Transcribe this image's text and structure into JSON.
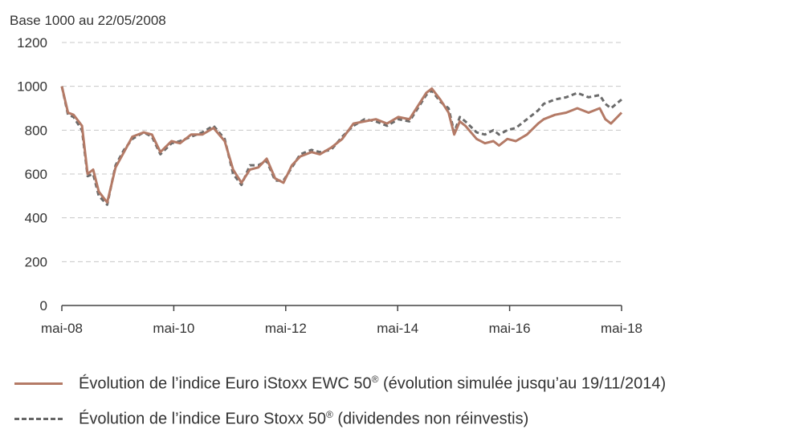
{
  "chart_data": {
    "type": "line",
    "title": "Base 1000 au 22/05/2008",
    "xlabel": "",
    "ylabel": "",
    "ylim": [
      0,
      1200
    ],
    "y_ticks": [
      0,
      200,
      400,
      600,
      800,
      1000,
      1200
    ],
    "x_ticks": [
      "mai-08",
      "mai-10",
      "mai-12",
      "mai-14",
      "mai-16",
      "mai-18"
    ],
    "x_range": [
      2008.39,
      2018.39
    ],
    "grid": "horizontal",
    "legend_position": "bottom",
    "series": [
      {
        "name": "Évolution de l’indice Euro iStoxx EWC 50",
        "legend_suffix": "(évolution simulée jusqu’au 19/11/2014)",
        "color": "#b47a66",
        "style": "solid",
        "x": [
          2008.39,
          2008.5,
          2008.6,
          2008.75,
          2008.85,
          2008.95,
          2009.05,
          2009.2,
          2009.35,
          2009.5,
          2009.65,
          2009.85,
          2010.0,
          2010.15,
          2010.35,
          2010.5,
          2010.7,
          2010.9,
          2011.1,
          2011.3,
          2011.45,
          2011.6,
          2011.75,
          2011.9,
          2012.05,
          2012.2,
          2012.35,
          2012.5,
          2012.65,
          2012.85,
          2013.0,
          2013.2,
          2013.4,
          2013.6,
          2013.8,
          2014.0,
          2014.2,
          2014.4,
          2014.6,
          2014.8,
          2014.9,
          2015.0,
          2015.15,
          2015.3,
          2015.4,
          2015.5,
          2015.6,
          2015.8,
          2015.95,
          2016.1,
          2016.2,
          2016.35,
          2016.5,
          2016.7,
          2016.9,
          2017.0,
          2017.2,
          2017.4,
          2017.6,
          2017.8,
          2018.0,
          2018.1,
          2018.2,
          2018.39
        ],
        "values": [
          1000,
          880,
          870,
          820,
          600,
          620,
          520,
          470,
          630,
          700,
          770,
          790,
          780,
          700,
          750,
          740,
          780,
          780,
          810,
          750,
          620,
          560,
          620,
          630,
          670,
          580,
          560,
          640,
          680,
          700,
          690,
          720,
          760,
          830,
          840,
          850,
          830,
          860,
          850,
          930,
          970,
          990,
          940,
          880,
          780,
          840,
          820,
          760,
          740,
          750,
          730,
          760,
          750,
          780,
          830,
          850,
          870,
          880,
          900,
          880,
          900,
          850,
          830,
          880
        ]
      },
      {
        "name": "Évolution de l’indice Euro Stoxx 50",
        "legend_suffix": "(dividendes non réinvestis)",
        "color": "#6b6b6b",
        "style": "dashed",
        "x": [
          2008.39,
          2008.5,
          2008.6,
          2008.75,
          2008.85,
          2008.95,
          2009.05,
          2009.2,
          2009.35,
          2009.5,
          2009.65,
          2009.85,
          2010.0,
          2010.15,
          2010.35,
          2010.5,
          2010.7,
          2010.9,
          2011.1,
          2011.3,
          2011.45,
          2011.6,
          2011.75,
          2011.9,
          2012.05,
          2012.2,
          2012.35,
          2012.5,
          2012.65,
          2012.85,
          2013.0,
          2013.2,
          2013.4,
          2013.6,
          2013.8,
          2014.0,
          2014.2,
          2014.4,
          2014.6,
          2014.8,
          2014.9,
          2015.0,
          2015.15,
          2015.3,
          2015.4,
          2015.5,
          2015.6,
          2015.8,
          2015.95,
          2016.1,
          2016.2,
          2016.35,
          2016.5,
          2016.7,
          2016.9,
          2017.0,
          2017.2,
          2017.4,
          2017.6,
          2017.8,
          2018.0,
          2018.1,
          2018.2,
          2018.39
        ],
        "values": [
          1000,
          870,
          860,
          800,
          590,
          600,
          500,
          460,
          640,
          710,
          760,
          790,
          770,
          690,
          740,
          750,
          770,
          790,
          820,
          760,
          600,
          550,
          640,
          640,
          660,
          570,
          570,
          630,
          690,
          710,
          700,
          710,
          770,
          820,
          850,
          840,
          820,
          850,
          840,
          920,
          960,
          980,
          930,
          900,
          790,
          860,
          840,
          790,
          780,
          800,
          780,
          800,
          810,
          850,
          890,
          920,
          940,
          950,
          970,
          950,
          960,
          920,
          900,
          940
        ]
      }
    ]
  },
  "legend": {
    "series1_label": "Évolution de l’indice Euro iStoxx EWC 50",
    "series1_reg": "®",
    "series1_note": " (évolution simulée jusqu’au 19/11/2014)",
    "series2_label": "Évolution de l’indice Euro Stoxx 50",
    "series2_reg": "®",
    "series2_note": " (dividendes non réinvestis)"
  }
}
